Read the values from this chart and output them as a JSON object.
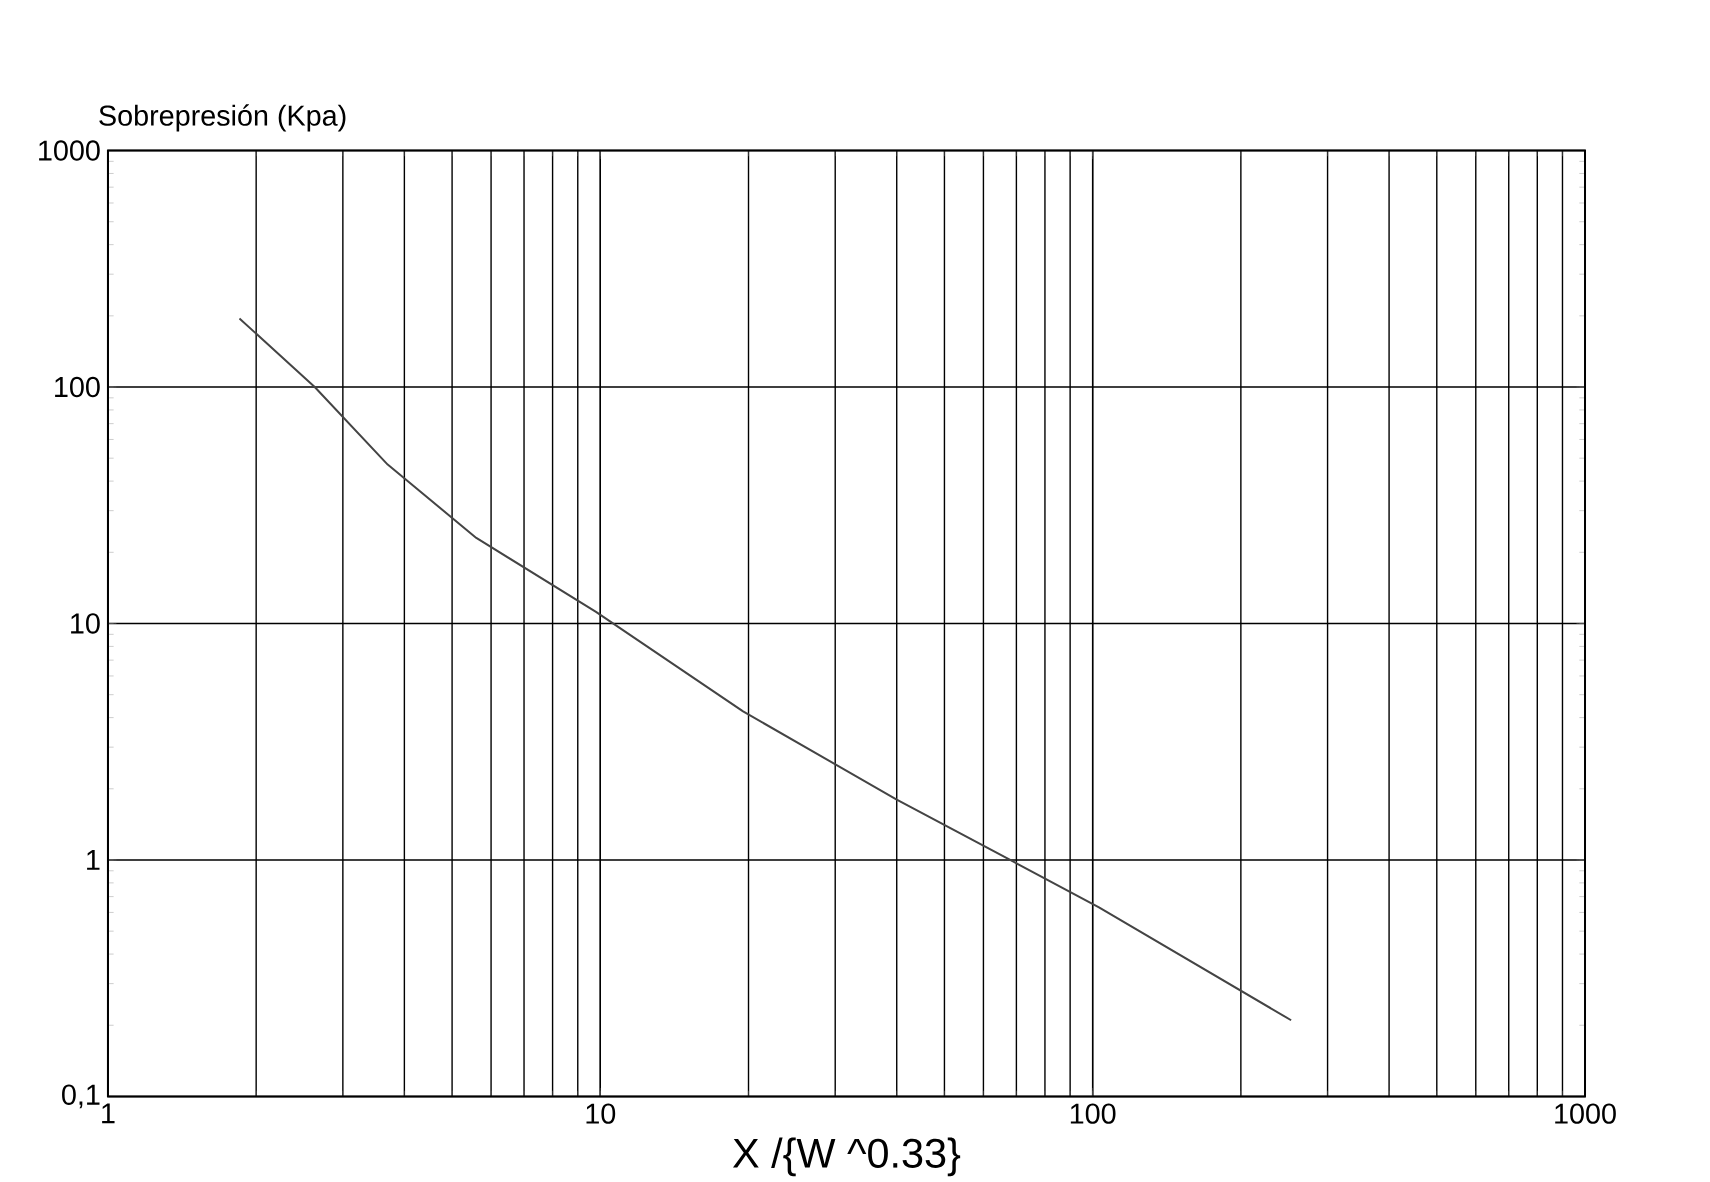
{
  "chart_data": {
    "type": "line",
    "ylabel": "Sobrepresión (Kpa)",
    "xlabel": "X /{W ^0.33}",
    "log": "xy",
    "grid": true,
    "marker": "none",
    "line_style": "solid",
    "x": [
      1.85,
      2.63,
      3.7,
      5.6,
      9.8,
      19.5,
      40,
      68,
      103,
      253
    ],
    "series": [
      {
        "color": "#444444",
        "values": [
          195,
          100,
          47,
          23,
          11.2,
          4.25,
          1.8,
          1,
          0.63,
          0.21
        ]
      }
    ],
    "xlim": [
      1,
      1000
    ],
    "ylim": [
      0.1,
      1000
    ],
    "xticks": [
      1,
      10,
      100,
      1000
    ],
    "yticks": [
      {
        "value": 0.1,
        "label": "0,1"
      },
      1,
      10,
      100,
      1000
    ]
  }
}
